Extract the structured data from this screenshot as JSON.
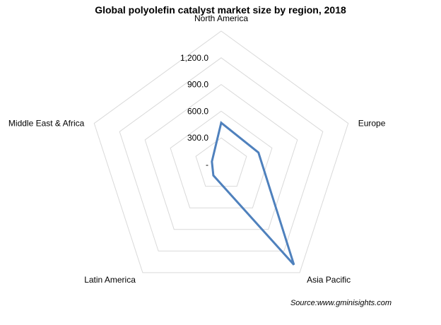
{
  "chart_data": {
    "type": "radar",
    "title": "Global polyolefin catalyst market size by region, 2018",
    "categories": [
      "North America",
      "Europe",
      "Asia Pacific",
      "Latin America",
      "Middle East & Africa"
    ],
    "series": [
      {
        "values": [
          470,
          440,
          1390,
          150,
          110
        ]
      }
    ],
    "rlim": [
      0,
      1500
    ],
    "ticks": [
      {
        "value": 0,
        "label": "-"
      },
      {
        "value": 300,
        "label": "300.0"
      },
      {
        "value": 600,
        "label": "600.0"
      },
      {
        "value": 900,
        "label": "900.0"
      },
      {
        "value": 1200,
        "label": "1,200.0"
      }
    ],
    "grid": true,
    "legend": "none",
    "colors": {
      "series": "#4f81bd",
      "grid": "#d9d9d9"
    }
  },
  "source": "Source:www.gminisights.com"
}
